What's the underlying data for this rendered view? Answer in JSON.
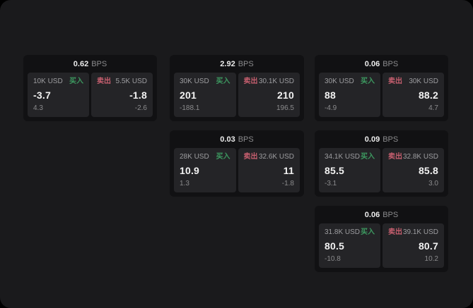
{
  "colors": {
    "panel_bg": "#1a1a1c",
    "card_bg": "#111113",
    "subpanel_bg": "#242427",
    "buy": "#3d9960",
    "sell": "#c75f6f"
  },
  "labels": {
    "bps_unit": "BPS",
    "buy": "买入",
    "sell": "卖出"
  },
  "cards": [
    {
      "col": 0,
      "row": 0,
      "bps": "0.62",
      "buy": {
        "amount": "10K USD",
        "price": "-3.7",
        "delta": "4.3"
      },
      "sell": {
        "amount": "5.5K USD",
        "price": "-1.8",
        "delta": "-2.6"
      }
    },
    {
      "col": 1,
      "row": 0,
      "bps": "2.92",
      "buy": {
        "amount": "30K USD",
        "price": "201",
        "delta": "-188.1"
      },
      "sell": {
        "amount": "30.1K USD",
        "price": "210",
        "delta": "196.5"
      }
    },
    {
      "col": 2,
      "row": 0,
      "bps": "0.06",
      "buy": {
        "amount": "30K USD",
        "price": "88",
        "delta": "-4.9"
      },
      "sell": {
        "amount": "30K USD",
        "price": "88.2",
        "delta": "4.7"
      }
    },
    {
      "col": 1,
      "row": 1,
      "bps": "0.03",
      "buy": {
        "amount": "28K USD",
        "price": "10.9",
        "delta": "1.3"
      },
      "sell": {
        "amount": "32.6K USD",
        "price": "11",
        "delta": "-1.8"
      }
    },
    {
      "col": 2,
      "row": 1,
      "bps": "0.09",
      "buy": {
        "amount": "34.1K USD",
        "price": "85.5",
        "delta": "-3.1"
      },
      "sell": {
        "amount": "32.8K USD",
        "price": "85.8",
        "delta": "3.0"
      }
    },
    {
      "col": 2,
      "row": 2,
      "bps": "0.06",
      "buy": {
        "amount": "31.8K USD",
        "price": "80.5",
        "delta": "-10.8"
      },
      "sell": {
        "amount": "39.1K USD",
        "price": "80.7",
        "delta": "10.2"
      }
    }
  ]
}
